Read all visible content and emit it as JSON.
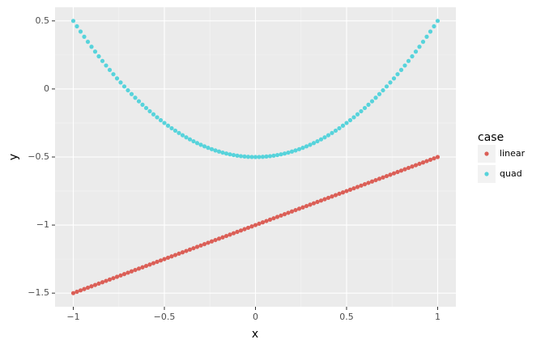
{
  "chart_data": {
    "type": "scatter",
    "x_label": "x",
    "y_label": "y",
    "legend_title": "case",
    "x": [
      -1,
      -0.98,
      -0.96,
      -0.94,
      -0.92,
      -0.9,
      -0.88,
      -0.86,
      -0.84,
      -0.82,
      -0.8,
      -0.78,
      -0.76,
      -0.74,
      -0.72,
      -0.7,
      -0.68,
      -0.66,
      -0.64,
      -0.62,
      -0.6,
      -0.58,
      -0.56,
      -0.54,
      -0.52,
      -0.5,
      -0.48,
      -0.46,
      -0.44,
      -0.42,
      -0.4,
      -0.38,
      -0.36,
      -0.34,
      -0.32,
      -0.3,
      -0.28,
      -0.26,
      -0.24,
      -0.22,
      -0.2,
      -0.18,
      -0.16,
      -0.14,
      -0.12,
      -0.1,
      -0.08,
      -0.06,
      -0.04,
      -0.02,
      0,
      0.02,
      0.04,
      0.06,
      0.08,
      0.1,
      0.12,
      0.14,
      0.16,
      0.18,
      0.2,
      0.22,
      0.24,
      0.26,
      0.28,
      0.3,
      0.32,
      0.34,
      0.36,
      0.38,
      0.4,
      0.42,
      0.44,
      0.46,
      0.48,
      0.5,
      0.52,
      0.54,
      0.56,
      0.58,
      0.6,
      0.62,
      0.64,
      0.66,
      0.68,
      0.7,
      0.72,
      0.74,
      0.76,
      0.78,
      0.8,
      0.82,
      0.84,
      0.86,
      0.88,
      0.9,
      0.92,
      0.94,
      0.96,
      0.98,
      1
    ],
    "series": [
      {
        "name": "linear",
        "color": "#db5f57",
        "values": [
          -1.5,
          -1.49,
          -1.48,
          -1.47,
          -1.46,
          -1.45,
          -1.44,
          -1.43,
          -1.42,
          -1.41,
          -1.4,
          -1.39,
          -1.38,
          -1.37,
          -1.36,
          -1.35,
          -1.34,
          -1.33,
          -1.32,
          -1.31,
          -1.3,
          -1.29,
          -1.28,
          -1.27,
          -1.26,
          -1.25,
          -1.24,
          -1.23,
          -1.22,
          -1.21,
          -1.2,
          -1.19,
          -1.18,
          -1.17,
          -1.16,
          -1.15,
          -1.14,
          -1.13,
          -1.12,
          -1.11,
          -1.1,
          -1.09,
          -1.08,
          -1.07,
          -1.06,
          -1.05,
          -1.04,
          -1.03,
          -1.02,
          -1.01,
          -1,
          -0.99,
          -0.98,
          -0.97,
          -0.96,
          -0.95,
          -0.94,
          -0.93,
          -0.92,
          -0.91,
          -0.9,
          -0.89,
          -0.88,
          -0.87,
          -0.86,
          -0.85,
          -0.84,
          -0.83,
          -0.82,
          -0.81,
          -0.8,
          -0.79,
          -0.78,
          -0.77,
          -0.76,
          -0.75,
          -0.74,
          -0.73,
          -0.72,
          -0.71,
          -0.7,
          -0.69,
          -0.68,
          -0.67,
          -0.66,
          -0.65,
          -0.64,
          -0.63,
          -0.62,
          -0.61,
          -0.6,
          -0.59,
          -0.58,
          -0.57,
          -0.56,
          -0.55,
          -0.54,
          -0.53,
          -0.52,
          -0.51,
          -0.5
        ]
      },
      {
        "name": "quad",
        "color": "#57d3db",
        "values": [
          0.5,
          0.4604,
          0.4216,
          0.3836,
          0.3464,
          0.31,
          0.2744,
          0.2396,
          0.2056,
          0.1724,
          0.14,
          0.1084,
          0.0776,
          0.0476,
          0.0184,
          -0.01,
          -0.0376,
          -0.0644,
          -0.0904,
          -0.1156,
          -0.14,
          -0.1636,
          -0.1864,
          -0.2084,
          -0.2296,
          -0.25,
          -0.2696,
          -0.2884,
          -0.3064,
          -0.3236,
          -0.34,
          -0.3556,
          -0.3704,
          -0.3844,
          -0.3976,
          -0.41,
          -0.4216,
          -0.4324,
          -0.4424,
          -0.4516,
          -0.46,
          -0.4676,
          -0.4744,
          -0.4804,
          -0.4856,
          -0.49,
          -0.4936,
          -0.4964,
          -0.4984,
          -0.4996,
          -0.5,
          -0.4996,
          -0.4984,
          -0.4964,
          -0.4936,
          -0.49,
          -0.4856,
          -0.4804,
          -0.4744,
          -0.4676,
          -0.46,
          -0.4516,
          -0.4424,
          -0.4324,
          -0.4216,
          -0.41,
          -0.3976,
          -0.3844,
          -0.3704,
          -0.3556,
          -0.34,
          -0.3236,
          -0.3064,
          -0.2884,
          -0.2696,
          -0.25,
          -0.2296,
          -0.2084,
          -0.1864,
          -0.1636,
          -0.14,
          -0.1156,
          -0.0904,
          -0.0644,
          -0.0376,
          -0.01,
          0.0184,
          0.0476,
          0.0776,
          0.1084,
          0.14,
          0.1724,
          0.2056,
          0.2396,
          0.2744,
          0.31,
          0.3464,
          0.3836,
          0.4216,
          0.4604,
          0.5
        ]
      }
    ],
    "xlim": [
      -1.1,
      1.1
    ],
    "ylim": [
      -1.6,
      0.6
    ],
    "xticks": [
      {
        "value": -1,
        "label": "−1"
      },
      {
        "value": -0.5,
        "label": "−0.5"
      },
      0,
      0.5,
      1
    ],
    "yticks": [
      {
        "value": -1.5,
        "label": "−1.5"
      },
      {
        "value": -1,
        "label": "−1"
      },
      {
        "value": -0.5,
        "label": "−0.5"
      },
      0,
      0.5
    ],
    "grid": true
  }
}
